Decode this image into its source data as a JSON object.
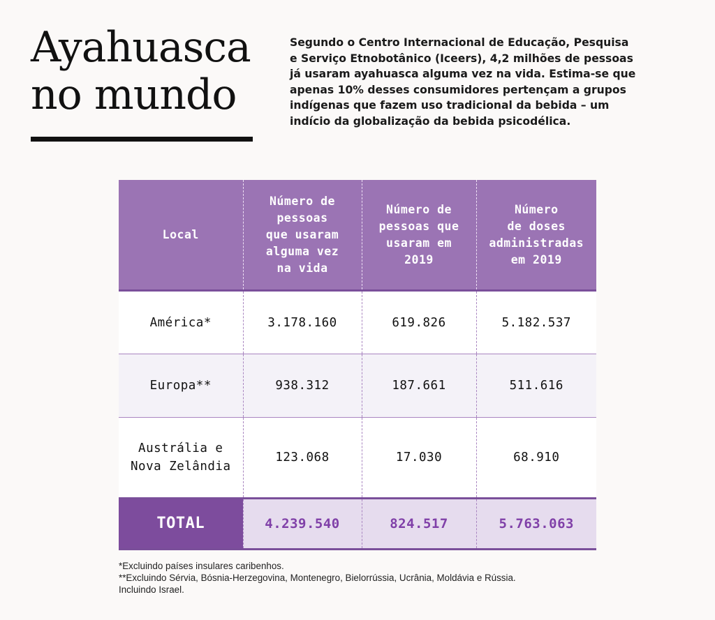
{
  "title": "Ayahuasca\nno mundo",
  "intro": "Segundo o Centro Internacional de Educação, Pesquisa\ne Serviço Etnobotânico (Iceers), 4,2 milhões de pessoas\njá usaram ayahuasca alguma vez na vida. Estima-se que\napenas 10% desses consumidores pertençam a grupos\nindígenas que fazem uso tradicional da bebida – um\nindício da globalização da bebida psicodélica.",
  "chart_data": {
    "type": "table",
    "columns": [
      "Local",
      "Número de\npessoas\nque usaram\nalguma vez\nna vida",
      "Número de\npessoas que\nusaram em\n2019",
      "Número\nde doses\nadministradas\nem 2019"
    ],
    "rows": [
      [
        "América*",
        "3.178.160",
        "619.826",
        "5.182.537"
      ],
      [
        "Europa**",
        "938.312",
        "187.661",
        "511.616"
      ],
      [
        "Austrália e\nNova Zelândia",
        "123.068",
        "17.030",
        "68.910"
      ]
    ],
    "total": [
      "TOTAL",
      "4.239.540",
      "824.517",
      "5.763.063"
    ]
  },
  "footnotes": [
    "*Excluindo países insulares caribenhos.",
    "**Excluindo Sérvia, Bósnia-Herzegovina, Montenegro, Bielorrússia, Ucrânia, Moldávia e Rússia.\nIncluindo Israel."
  ],
  "colors": {
    "header_bg": "#9b74b4",
    "total_label_bg": "#7d4c9d",
    "total_row_bg": "#e6dcee",
    "accent_text": "#8040a8"
  }
}
